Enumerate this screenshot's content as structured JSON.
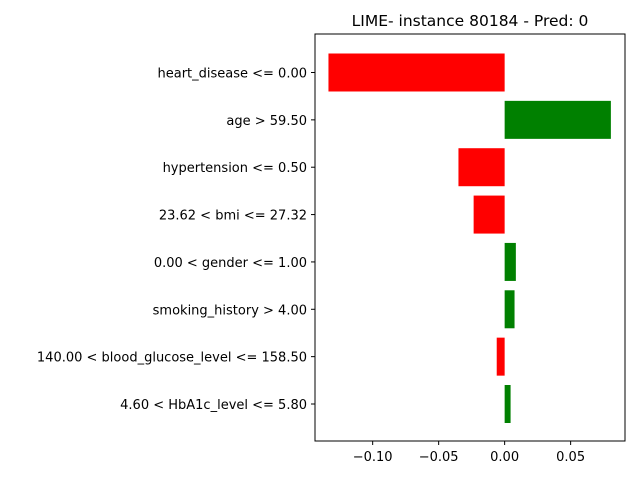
{
  "chart_data": {
    "type": "bar",
    "orientation": "horizontal",
    "title": "LIME- instance 80184 - Pred: 0",
    "xlabel": "",
    "ylabel": "",
    "categories": [
      "heart_disease <= 0.00",
      "age > 59.50",
      "hypertension <= 0.50",
      "23.62 < bmi <= 27.32",
      "0.00 < gender <= 1.00",
      "smoking_history > 4.00",
      "140.00 < blood_glucose_level <= 158.50",
      "4.60 < HbA1c_level <= 5.80"
    ],
    "values": [
      -0.1335,
      0.0805,
      -0.035,
      -0.0235,
      0.0085,
      0.0075,
      -0.006,
      0.0045
    ],
    "xlim": [
      -0.1437,
      0.0912
    ],
    "xticks": [
      -0.1,
      -0.05,
      0.0,
      0.05
    ],
    "xtick_labels": [
      "−0.10",
      "−0.05",
      "0.00",
      "0.05"
    ],
    "grid": false,
    "colors": {
      "positive": "#008000",
      "negative": "#ff0000",
      "axis": "#000000"
    }
  }
}
